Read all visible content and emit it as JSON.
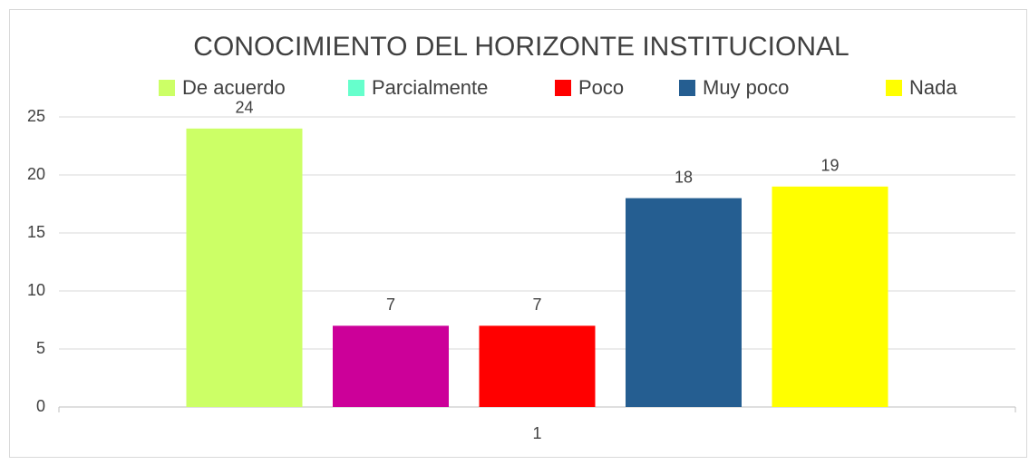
{
  "chart_data": {
    "type": "bar",
    "title": "CONOCIMIENTO DEL HORIZONTE INSTITUCIONAL",
    "categories": [
      "1"
    ],
    "series": [
      {
        "name": "De acuerdo",
        "color": "#ccff66",
        "values": [
          24
        ]
      },
      {
        "name": "Parcialmente",
        "color": "#cc0099",
        "legend_color": "#66ffcc",
        "values": [
          7
        ]
      },
      {
        "name": "Poco",
        "color": "#ff0000",
        "values": [
          7
        ]
      },
      {
        "name": "Muy poco",
        "color": "#255e91",
        "values": [
          18
        ]
      },
      {
        "name": "Nada",
        "color": "#ffff00",
        "values": [
          19
        ]
      }
    ],
    "ylim": [
      0,
      25
    ],
    "yticks": [
      0,
      5,
      10,
      15,
      20,
      25
    ],
    "grid": true,
    "legend": "top"
  }
}
